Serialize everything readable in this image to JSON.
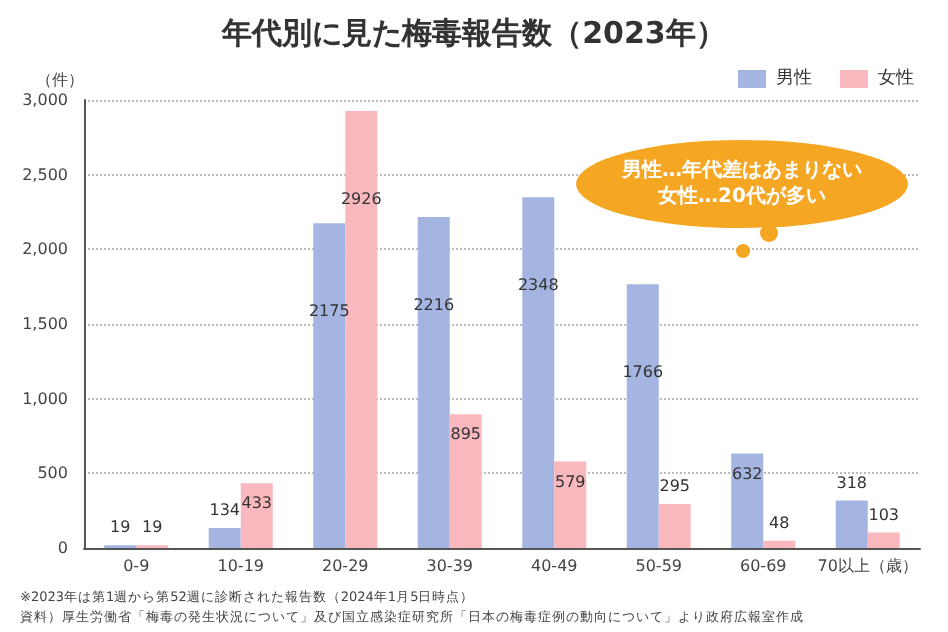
{
  "chart_data": {
    "type": "bar",
    "title": "年代別に見た梅毒報告数（2023年）",
    "ylabel": "（件）",
    "categories": [
      "0-9",
      "10-19",
      "20-29",
      "30-39",
      "40-49",
      "50-59",
      "60-69",
      "70以上（歳）"
    ],
    "series": [
      {
        "name": "男性",
        "color": "#a3b5e0",
        "values": [
          19,
          134,
          2175,
          2216,
          2348,
          1766,
          632,
          318
        ]
      },
      {
        "name": "女性",
        "color": "#f9b8be",
        "values": [
          19,
          433,
          2926,
          895,
          579,
          295,
          48,
          103
        ]
      }
    ],
    "ylim": [
      0,
      3000
    ],
    "yticks": [
      0,
      500,
      {
        "value": 1000,
        "label": "1,000"
      },
      {
        "value": 1500,
        "label": "1,500"
      },
      {
        "value": 2000,
        "label": "2,000"
      },
      {
        "value": 2500,
        "label": "2,500"
      },
      {
        "value": 3000,
        "label": "3,000"
      }
    ],
    "grid": "y",
    "legend": "top right",
    "data_labels": true,
    "annotations": [
      "男性…年代差はあまりない",
      "女性…20代が多い",
      "※2023年は第1週から第52週に診断された報告数（2024年1月5日時点）",
      "資料）厚生労働省「梅毒の発生状況について」及び国立感染症研究所「日本の梅毒症例の動向について」より政府広報室作成"
    ]
  }
}
